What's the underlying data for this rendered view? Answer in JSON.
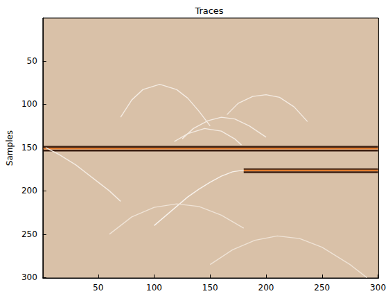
{
  "chart_data": {
    "type": "line",
    "title": "Traces",
    "y_label": "Samples",
    "xlim": [
      0.5,
      300.5
    ],
    "ylim": [
      0.5,
      300.5
    ],
    "xticks": [
      50,
      100,
      150,
      200,
      250,
      300
    ],
    "yticks": [
      50,
      100,
      150,
      200,
      250,
      300
    ],
    "grid": false,
    "series": [
      {
        "color": "#3b1f12",
        "line_style": "solid",
        "x": [
          1,
          300
        ],
        "values": [
          149,
          149
        ]
      },
      {
        "color": "#e07b2e",
        "line_style": "solid",
        "x": [
          1,
          300
        ],
        "values": [
          151,
          151
        ]
      },
      {
        "color": "#3b1f12",
        "line_style": "solid",
        "x": [
          1,
          300
        ],
        "values": [
          153.5,
          153.5
        ]
      },
      {
        "color": "#3b1f12",
        "line_style": "solid",
        "x": [
          180,
          300
        ],
        "values": [
          175,
          175
        ]
      },
      {
        "color": "#e07b2e",
        "line_style": "solid",
        "x": [
          180,
          300
        ],
        "values": [
          176.5,
          176.5
        ]
      },
      {
        "color": "#3b1f12",
        "line_style": "solid",
        "x": [
          180,
          300
        ],
        "values": [
          178.5,
          178.5
        ]
      },
      {
        "color": "#f4ebe2",
        "line_style": "solid",
        "x": [
          70,
          80,
          90,
          105,
          120,
          130,
          140,
          150
        ],
        "values": [
          115,
          95,
          83,
          77,
          83,
          93,
          108,
          125
        ]
      },
      {
        "color": "#f4ebe2",
        "line_style": "solid",
        "x": [
          165,
          175,
          188,
          200,
          212,
          225,
          237
        ],
        "values": [
          112,
          99,
          91,
          89,
          92,
          103,
          120
        ]
      },
      {
        "color": "#f4ebe2",
        "line_style": "solid",
        "x": [
          125,
          135,
          148,
          160,
          172,
          185,
          200
        ],
        "values": [
          140,
          128,
          119,
          115,
          117,
          125,
          138
        ]
      },
      {
        "color": "#f4ebe2",
        "line_style": "solid",
        "x": [
          118,
          130,
          145,
          160,
          172,
          178
        ],
        "values": [
          143,
          134,
          128,
          131,
          140,
          147
        ]
      },
      {
        "color": "#f4ebe2",
        "line_style": "solid",
        "x": [
          3,
          15,
          30,
          45,
          60,
          70
        ],
        "values": [
          150,
          158,
          170,
          185,
          200,
          212
        ]
      },
      {
        "color": "#f8f2ec",
        "line_style": "solid",
        "x": [
          180,
          170,
          160,
          150,
          140,
          130,
          120,
          100
        ],
        "values": [
          176,
          178,
          183,
          190,
          198,
          207,
          218,
          240
        ]
      },
      {
        "color": "#efe3d6",
        "line_style": "solid",
        "x": [
          60,
          80,
          100,
          120,
          140,
          160,
          180
        ],
        "values": [
          250,
          230,
          219,
          215,
          218,
          228,
          243
        ]
      },
      {
        "color": "#efe3d6",
        "line_style": "solid",
        "x": [
          150,
          170,
          190,
          210,
          230,
          250,
          275,
          290
        ],
        "values": [
          285,
          268,
          257,
          252,
          255,
          265,
          285,
          300
        ]
      }
    ]
  }
}
